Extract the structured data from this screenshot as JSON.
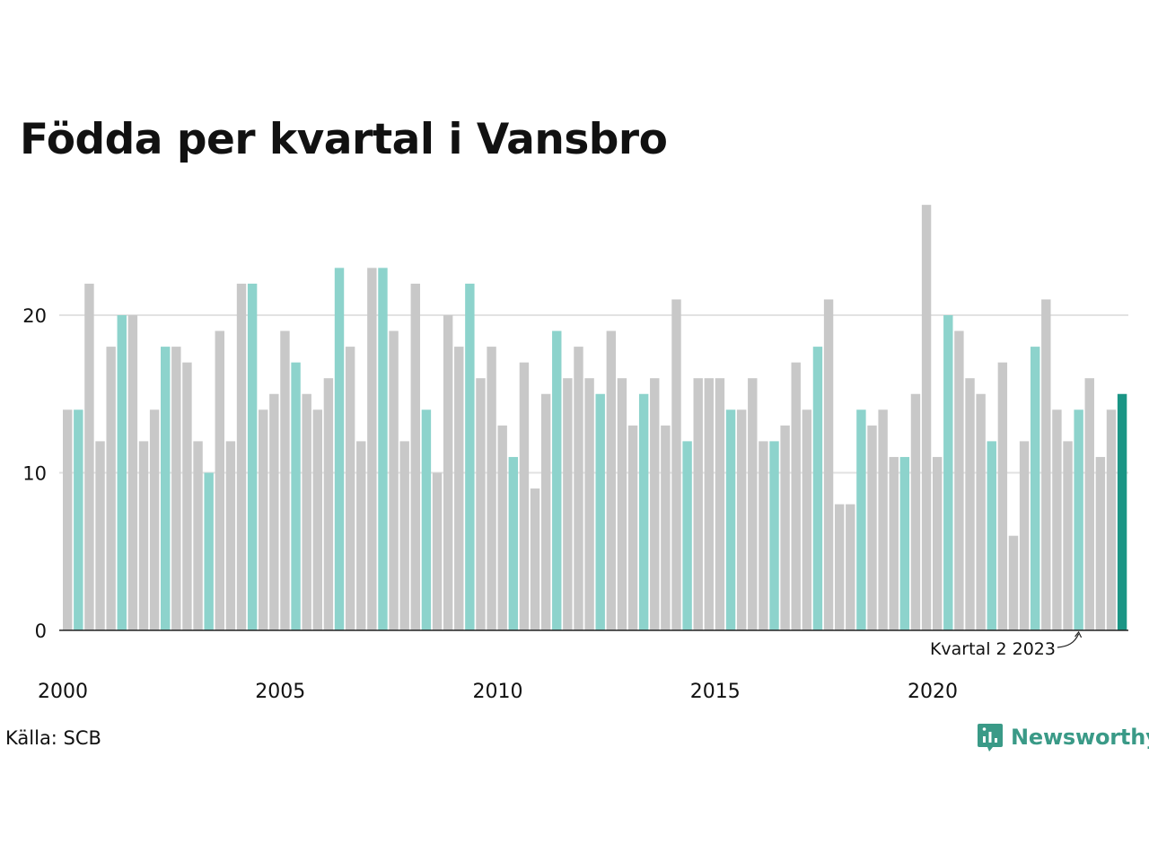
{
  "title": "Födda per kvartal i Vansbro",
  "source": "Källa: SCB",
  "brand": {
    "name": "Newsworthy",
    "icon": "newsworthy-logo-icon"
  },
  "colors": {
    "bar_default": "#c8c8c8",
    "bar_quarter2": "#8dd3cc",
    "bar_latest": "#1a9585",
    "grid": "#e2e2e2",
    "axis": "#222222",
    "brand": "#3a9a87"
  },
  "chart_data": {
    "type": "bar",
    "title": "Födda per kvartal i Vansbro",
    "first_period": "2000 Q1",
    "last_period": "2024 Q2",
    "ylim": [
      0,
      27
    ],
    "yticks": [
      0,
      10,
      20
    ],
    "xticks": [
      "2000",
      "2005",
      "2010",
      "2015",
      "2020"
    ],
    "grid": true,
    "values": [
      14,
      14,
      22,
      12,
      18,
      20,
      20,
      12,
      14,
      18,
      18,
      17,
      12,
      10,
      19,
      12,
      22,
      22,
      14,
      15,
      19,
      17,
      15,
      14,
      16,
      23,
      18,
      12,
      23,
      23,
      19,
      12,
      22,
      14,
      10,
      20,
      18,
      22,
      16,
      18,
      13,
      11,
      17,
      9,
      15,
      19,
      16,
      18,
      16,
      15,
      19,
      16,
      13,
      15,
      16,
      13,
      21,
      12,
      16,
      16,
      16,
      14,
      14,
      16,
      12,
      12,
      13,
      17,
      14,
      18,
      21,
      8,
      8,
      14,
      13,
      14,
      11,
      11,
      15,
      27,
      11,
      20,
      19,
      16,
      15,
      12,
      17,
      6,
      12,
      18,
      21,
      14,
      12,
      14,
      16,
      11,
      14,
      15
    ],
    "annotation": {
      "text": "Kvartal 2 2023",
      "target_index": 93
    }
  }
}
